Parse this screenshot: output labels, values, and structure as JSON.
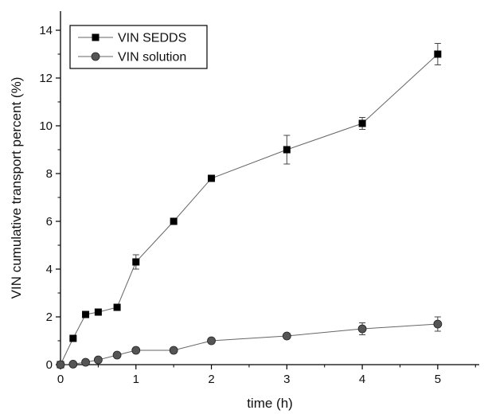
{
  "chart_data": {
    "type": "line",
    "title": "",
    "xlabel": "time (h)",
    "ylabel": "VIN cumulative transport percent (%)",
    "xlim": [
      0,
      5.55
    ],
    "ylim": [
      0,
      14.8
    ],
    "x_ticks": [
      0,
      1,
      2,
      3,
      4,
      5
    ],
    "x_tick_labels": [
      "0",
      "1",
      "2",
      "3",
      "4",
      "5"
    ],
    "y_ticks": [
      0,
      2,
      4,
      6,
      8,
      10,
      12,
      14
    ],
    "y_tick_labels": [
      "0",
      "2",
      "4",
      "6",
      "8",
      "10",
      "12",
      "14"
    ],
    "grid": false,
    "legend_position": "top-left",
    "series": [
      {
        "name": "VIN SEDDS",
        "marker": "square",
        "color": "#000000",
        "x": [
          0,
          0.167,
          0.333,
          0.5,
          0.75,
          1,
          1.5,
          2,
          3,
          4,
          5
        ],
        "y": [
          0,
          1.1,
          2.1,
          2.2,
          2.4,
          4.3,
          6.0,
          7.8,
          9.0,
          10.1,
          13.0
        ],
        "error": [
          0,
          0,
          0,
          0,
          0.1,
          0.3,
          0,
          0,
          0.6,
          0.25,
          0.45
        ]
      },
      {
        "name": "VIN solution",
        "marker": "circle",
        "color": "#555555",
        "x": [
          0,
          0.167,
          0.333,
          0.5,
          0.75,
          1,
          1.5,
          2,
          3,
          4,
          5
        ],
        "y": [
          0,
          0.02,
          0.1,
          0.2,
          0.4,
          0.6,
          0.6,
          1.0,
          1.2,
          1.5,
          1.7
        ],
        "error": [
          0,
          0,
          0,
          0,
          0,
          0,
          0,
          0,
          0,
          0.25,
          0.3
        ]
      }
    ]
  }
}
